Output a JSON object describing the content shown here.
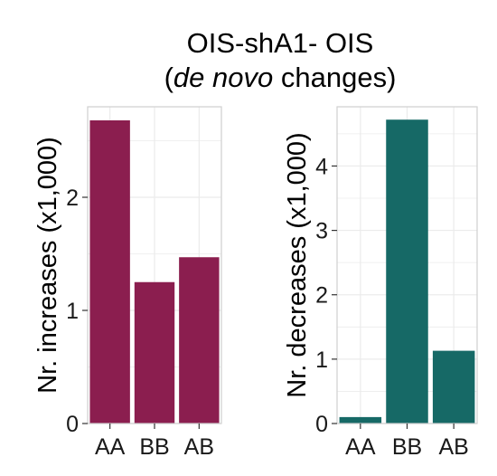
{
  "title": {
    "line1": "OIS-shA1- OIS",
    "line2_open": "(",
    "line2_italic": "de novo",
    "line2_rest": " changes)"
  },
  "colors": {
    "increases": "#8b1e4f",
    "decreases": "#166966",
    "panel_border": "#cfcfcf",
    "grid": "#ebebeb"
  },
  "chart_data": [
    {
      "type": "bar",
      "categories": [
        "AA",
        "BB",
        "AB"
      ],
      "values": [
        2.68,
        1.25,
        1.47
      ],
      "ylabel": "Nr. increases (x1,000)",
      "xlabel": "",
      "ylim": [
        0,
        2.8
      ],
      "yticks": [
        0,
        1,
        2
      ],
      "grid": true,
      "color": "#8b1e4f"
    },
    {
      "type": "bar",
      "categories": [
        "AA",
        "BB",
        "AB"
      ],
      "values": [
        0.1,
        4.72,
        1.13
      ],
      "ylabel": "Nr. decreases (x1,000)",
      "xlabel": "",
      "ylim": [
        0,
        4.92
      ],
      "yticks": [
        0,
        1,
        2,
        3,
        4
      ],
      "grid": true,
      "color": "#166966"
    }
  ]
}
